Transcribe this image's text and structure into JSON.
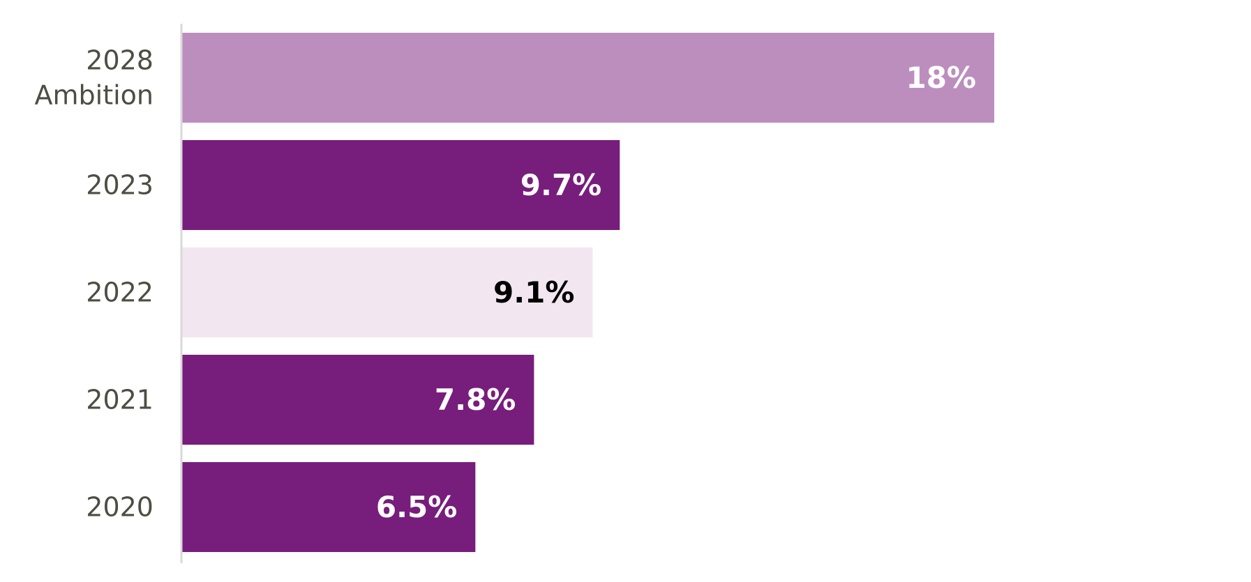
{
  "chart_data": {
    "type": "bar",
    "orientation": "horizontal",
    "categories": [
      [
        "2028",
        "Ambition"
      ],
      [
        "2023"
      ],
      [
        "2022"
      ],
      [
        "2021"
      ],
      [
        "2020"
      ]
    ],
    "values": [
      18,
      9.7,
      9.1,
      7.8,
      6.5
    ],
    "value_labels": [
      "18%",
      "9.7%",
      "9.1%",
      "7.8%",
      "6.5%"
    ],
    "bar_colors": [
      "#bc8ebe",
      "#771d7c",
      "#f2e6f1",
      "#771d7c",
      "#771d7c"
    ],
    "label_colors": [
      "#ffffff",
      "#ffffff",
      "#000000",
      "#ffffff",
      "#ffffff"
    ],
    "title": "",
    "xlabel": "",
    "ylabel": "",
    "xlim": [
      0,
      22.5
    ],
    "grid": false,
    "legend": "none",
    "axis_color": "#d9d9d9"
  }
}
